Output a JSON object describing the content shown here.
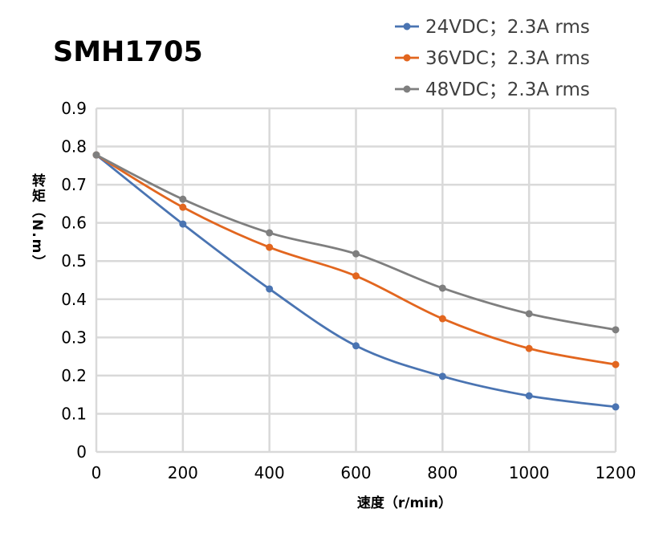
{
  "chart_data": {
    "type": "line",
    "title": "SMH1705",
    "xlabel": "速度（r/min）",
    "ylabel": "转矩（N.m）",
    "ylabel_chars": [
      "转",
      "矩",
      "（",
      "N",
      ".",
      "m",
      "）"
    ],
    "xlim": [
      0,
      1200
    ],
    "ylim": [
      0,
      0.9
    ],
    "xticks": [
      0,
      200,
      400,
      600,
      800,
      1000,
      1200
    ],
    "yticks": [
      0,
      0.1,
      0.2,
      0.3,
      0.4,
      0.5,
      0.6,
      0.7,
      0.8,
      0.9
    ],
    "ytick_labels": [
      "0",
      "0.1",
      "0.2",
      "0.3",
      "0.4",
      "0.5",
      "0.6",
      "0.7",
      "0.8",
      "0.9"
    ],
    "grid": true,
    "legend_position": "top-right",
    "x": [
      0,
      200,
      400,
      600,
      800,
      1000,
      1200
    ],
    "series": [
      {
        "name": "24VDC；2.3A rms",
        "color": "#4a74b2",
        "values": [
          0.778,
          0.597,
          0.427,
          0.278,
          0.198,
          0.147,
          0.118
        ]
      },
      {
        "name": "36VDC；2.3A rms",
        "color": "#e2661f",
        "values": [
          0.778,
          0.641,
          0.536,
          0.461,
          0.349,
          0.271,
          0.229
        ]
      },
      {
        "name": "48VDC；2.3A rms",
        "color": "#7f7f7f",
        "values": [
          0.778,
          0.662,
          0.574,
          0.519,
          0.429,
          0.362,
          0.32
        ]
      }
    ]
  }
}
